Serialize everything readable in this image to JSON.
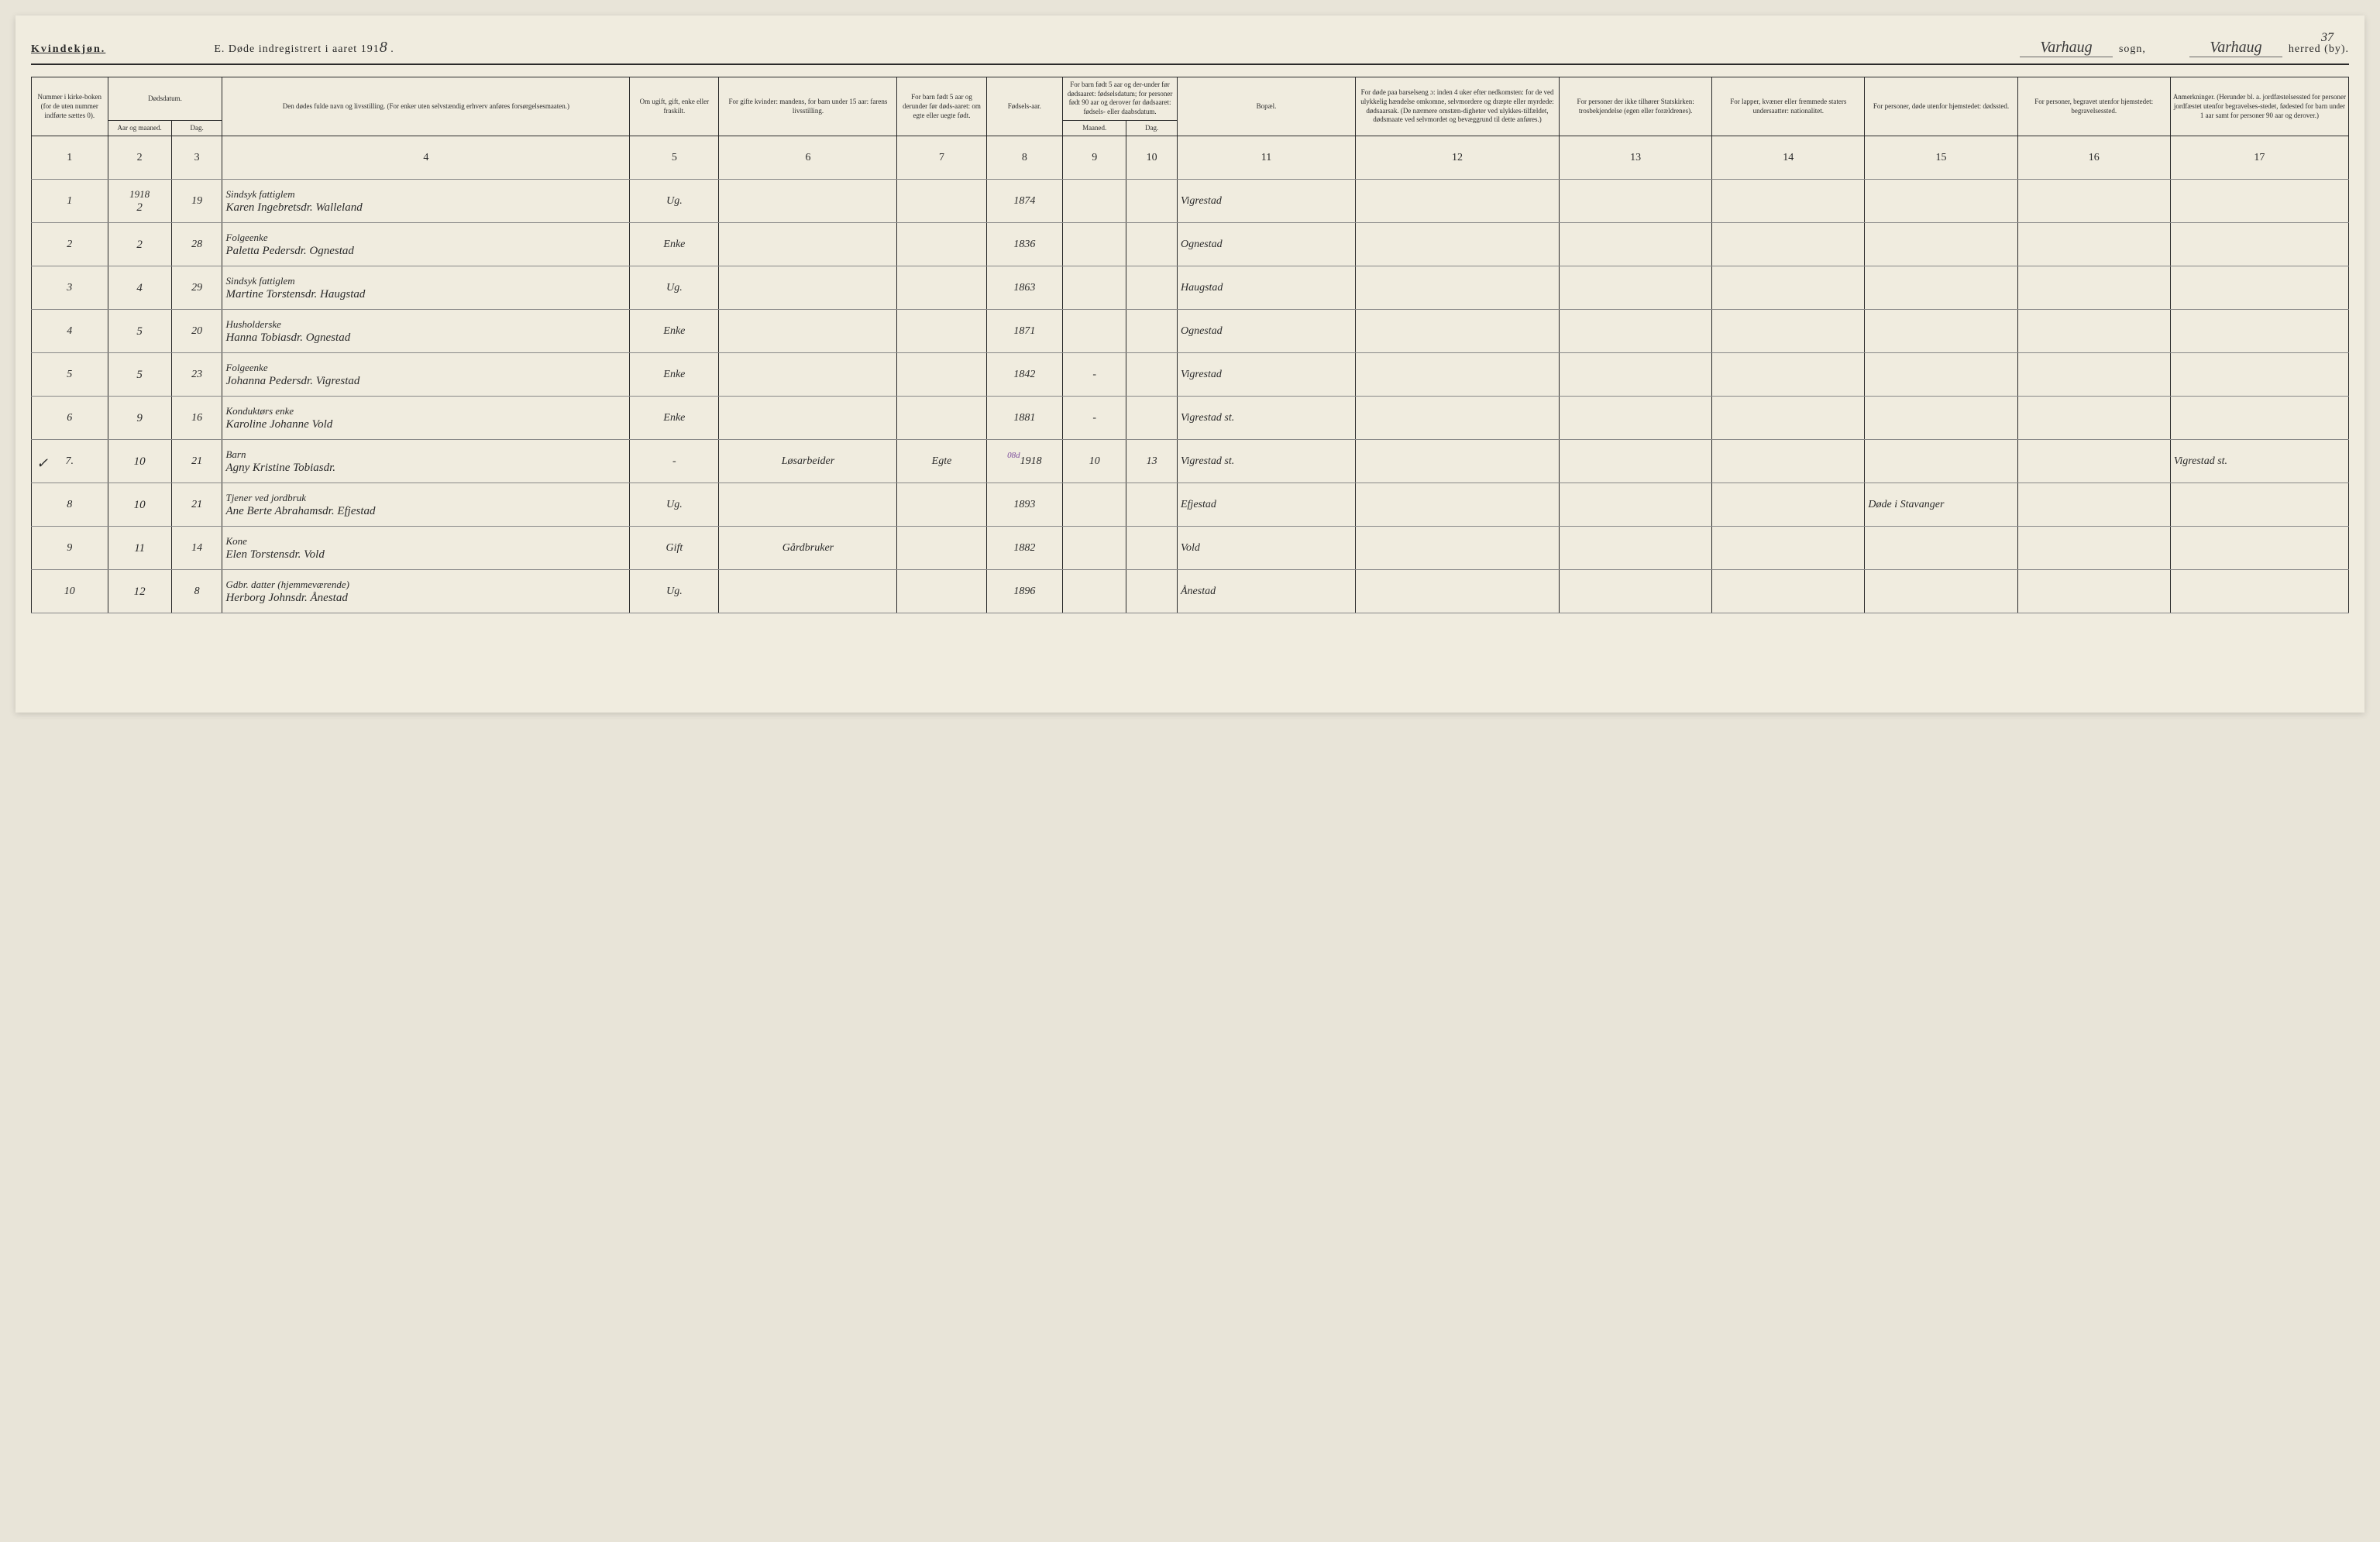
{
  "header": {
    "kvindekjon": "Kvindekjøn.",
    "title_prefix": "E.  Døde indregistrert i aaret 191",
    "year_suffix": "8",
    "sogn_value": "Varhaug",
    "sogn_label": "sogn,",
    "herred_value": "Varhaug",
    "herred_label": "herred (by).",
    "page_number": "37"
  },
  "columns": {
    "c1": "Nummer i kirke-boken (for de uten nummer indførte sættes 0).",
    "c2": "Dødsdatum.",
    "c2a": "Aar og maaned.",
    "c2b": "Dag.",
    "c4": "Den dødes fulde navn og livsstilling.\n(For enker uten selvstændig erhverv anføres forsørgelsesmaaten.)",
    "c5": "Om ugift, gift, enke eller fraskilt.",
    "c6": "For gifte kvinder: mandens, for barn under 15 aar: farens livsstilling.",
    "c7": "For barn født 5 aar og derunder før døds-aaret: om egte eller uegte født.",
    "c8": "Fødsels-aar.",
    "c9": "For barn født 5 aar og der-under før dødsaaret: fødselsdatum; for personer født 90 aar og derover før dødsaaret: fødsels- eller daabsdatum.",
    "c9a": "Maaned.",
    "c9b": "Dag.",
    "c11": "Bopæl.",
    "c12": "For døde paa barselseng ɔ: inden 4 uker efter nedkomsten: for de ved ulykkelig hændelse omkomne, selvmordere og dræpte eller myrdede: dødsaarsak. (De nærmere omstæn-digheter ved ulykkes-tilfældet, dødsmaate ved selvmordet og bevæggrund til dette anføres.)",
    "c13": "For personer der ikke tilhører Statskirken: trosbekjendelse (egen eller forældrenes).",
    "c14": "For lapper, kvæner eller fremmede staters undersaatter: nationalitet.",
    "c15": "For personer, døde utenfor hjemstedet: dødssted.",
    "c16": "For personer, begravet utenfor hjemstedet: begravelsessted.",
    "c17": "Anmerkninger. (Herunder bl. a. jordfæstelsessted for personer jordfæstet utenfor begravelses-stedet, fødested for barn under 1 aar samt for personer 90 aar og derover.)"
  },
  "colnums": [
    "1",
    "2",
    "3",
    "4",
    "5",
    "6",
    "7",
    "8",
    "9",
    "10",
    "11",
    "12",
    "13",
    "14",
    "15",
    "16",
    "17"
  ],
  "year_header": "1918",
  "rows": [
    {
      "num": "1",
      "month": "2",
      "day": "19",
      "occ": "Sindsyk fattiglem",
      "name": "Karen Ingebretsdr. Walleland",
      "status": "Ug.",
      "c6": "",
      "c7": "",
      "year": "1874",
      "m": "",
      "d": "",
      "bopael": "Vigrestad",
      "c15": "",
      "c17": ""
    },
    {
      "num": "2",
      "month": "2",
      "day": "28",
      "occ": "Folgeenke",
      "name": "Paletta Pedersdr. Ognestad",
      "status": "Enke",
      "c6": "",
      "c7": "",
      "year": "1836",
      "m": "",
      "d": "",
      "bopael": "Ognestad",
      "c15": "",
      "c17": ""
    },
    {
      "num": "3",
      "month": "4",
      "day": "29",
      "occ": "Sindsyk fattiglem",
      "name": "Martine Torstensdr. Haugstad",
      "status": "Ug.",
      "c6": "",
      "c7": "",
      "year": "1863",
      "m": "",
      "d": "",
      "bopael": "Haugstad",
      "c15": "",
      "c17": ""
    },
    {
      "num": "4",
      "month": "5",
      "day": "20",
      "occ": "Husholderske",
      "name": "Hanna Tobiasdr. Ognestad",
      "status": "Enke",
      "c6": "",
      "c7": "",
      "year": "1871",
      "m": "",
      "d": "",
      "bopael": "Ognestad",
      "c15": "",
      "c17": ""
    },
    {
      "num": "5",
      "month": "5",
      "day": "23",
      "occ": "Folgeenke",
      "name": "Johanna Pedersdr. Vigrestad",
      "status": "Enke",
      "c6": "",
      "c7": "",
      "year": "1842",
      "m": "-",
      "d": "",
      "bopael": "Vigrestad",
      "c15": "",
      "c17": ""
    },
    {
      "num": "6",
      "month": "9",
      "day": "16",
      "occ": "Konduktørs enke",
      "name": "Karoline Johanne Vold",
      "status": "Enke",
      "c6": "",
      "c7": "",
      "year": "1881",
      "m": "-",
      "d": "",
      "bopael": "Vigrestad st.",
      "c15": "",
      "c17": ""
    },
    {
      "num": "7.",
      "month": "10",
      "day": "21",
      "occ": "Barn",
      "name": "Agny Kristine Tobiasdr.",
      "status": "-",
      "c6": "Løsarbeider",
      "c7": "Egte",
      "year": "1918",
      "m": "10",
      "d": "13",
      "bopael": "Vigrestad st.",
      "c15": "",
      "c17": "Vigrestad st.",
      "annot": "08d",
      "check": "✓"
    },
    {
      "num": "8",
      "month": "10",
      "day": "21",
      "occ": "Tjener ved jordbruk",
      "name": "Ane Berte Abrahamsdr. Efjestad",
      "status": "Ug.",
      "c6": "",
      "c7": "",
      "year": "1893",
      "m": "",
      "d": "",
      "bopael": "Efjestad",
      "c15": "Døde i Stavanger",
      "c17": ""
    },
    {
      "num": "9",
      "month": "11",
      "day": "14",
      "occ": "Kone",
      "name": "Elen Torstensdr. Vold",
      "status": "Gift",
      "c6": "Gårdbruker",
      "c7": "",
      "year": "1882",
      "m": "",
      "d": "",
      "bopael": "Vold",
      "c15": "",
      "c17": ""
    },
    {
      "num": "10",
      "month": "12",
      "day": "8",
      "occ": "Gdbr. datter (hjemmeværende)",
      "name": "Herborg Johnsdr. Ånestad",
      "status": "Ug.",
      "c6": "",
      "c7": "",
      "year": "1896",
      "m": "",
      "d": "",
      "bopael": "Ånestad",
      "c15": "",
      "c17": ""
    }
  ]
}
